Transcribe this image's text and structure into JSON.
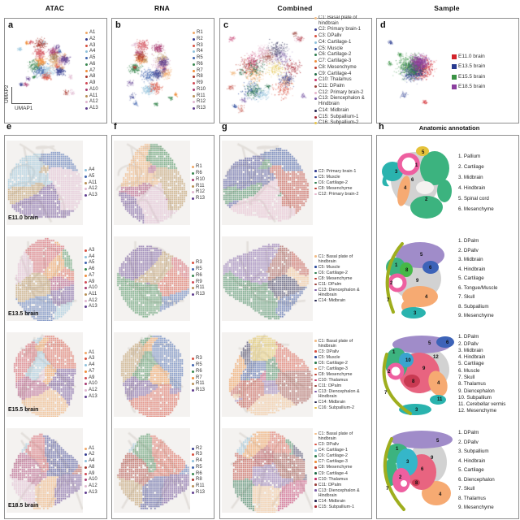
{
  "columns": [
    "ATAC",
    "RNA",
    "Combined",
    "Sample"
  ],
  "axis": {
    "x": "UMAP1",
    "y": "UMAP2"
  },
  "panels": {
    "a": {
      "letter": "a",
      "legend": [
        "A1",
        "A2",
        "A3",
        "A4",
        "A5",
        "A6",
        "A7",
        "A8",
        "A9",
        "A10",
        "A11",
        "A12",
        "A13"
      ]
    },
    "b": {
      "letter": "b",
      "legend": [
        "R1",
        "R2",
        "R3",
        "R4",
        "R5",
        "R6",
        "R7",
        "R8",
        "R9",
        "R10",
        "R11",
        "R12",
        "R13"
      ]
    },
    "c": {
      "letter": "c",
      "legend": [
        "C1: Basal plate of hindbrain",
        "C2: Primary brain-1",
        "C3: DPallv",
        "C4: Cartilage-1",
        "C5: Muscle",
        "C6: Cartilage-2",
        "C7: Cartilage-3",
        "C8: Mesenchyme",
        "C9: Cartilage-4",
        "C10: Thalamus",
        "C11: DPalm",
        "C12: Primary brain-2",
        "C13: Diencephalon & Hindbrain",
        "C14: Midbrain",
        "C15: Subpallium-1",
        "C16: Subpallium-2"
      ]
    },
    "d": {
      "letter": "d",
      "legend": [
        "E11.0 brain",
        "E13.5 brain",
        "E15.5 brain",
        "E18.5 brain"
      ]
    },
    "e": {
      "letter": "e",
      "rows": [
        {
          "stage": "E11.0 brain",
          "legend": [
            "A4",
            "A5",
            "A11",
            "A12",
            "A13"
          ]
        },
        {
          "stage": "E13.5 brain",
          "legend": [
            "A3",
            "A4",
            "A5",
            "A6",
            "A7",
            "A9",
            "A10",
            "A11",
            "A12",
            "A13"
          ]
        },
        {
          "stage": "E15.5 brain",
          "legend": [
            "A1",
            "A3",
            "A4",
            "A7",
            "A9",
            "A10",
            "A12",
            "A13"
          ]
        },
        {
          "stage": "E18.5 brain",
          "legend": [
            "A1",
            "A2",
            "A4",
            "A8",
            "A9",
            "A10",
            "A12",
            "A13"
          ]
        }
      ]
    },
    "f": {
      "letter": "f",
      "rows": [
        {
          "legend": [
            "R1",
            "R6",
            "R10",
            "R11",
            "R12",
            "R13"
          ]
        },
        {
          "legend": [
            "R3",
            "R5",
            "R6",
            "R9",
            "R11",
            "R13"
          ]
        },
        {
          "legend": [
            "R3",
            "R5",
            "R6",
            "R7",
            "R11",
            "R13"
          ]
        },
        {
          "legend": [
            "R2",
            "R3",
            "R4",
            "R5",
            "R6",
            "R8",
            "R11",
            "R13"
          ]
        }
      ]
    },
    "g": {
      "letter": "g",
      "rows": [
        {
          "legend": [
            "C2: Primary brain-1",
            "C5: Muscle",
            "C6: Cartilage-2",
            "C8: Mesenchyme",
            "C12: Primary brain-2"
          ]
        },
        {
          "legend": [
            "C1: Basal plate of hindbrain",
            "C5: Muscle",
            "C6: Cartilage-2",
            "C8: Mesenchyme",
            "C11: DPalm",
            "C13: Diencephalon & Hindbrain",
            "C14: Midbrain"
          ]
        },
        {
          "legend": [
            "C1: Basal plate of hindbrain",
            "C3: DPallv",
            "C5: Muscle",
            "C6: Cartilage-2",
            "C7: Cartilage-3",
            "C8: Mesenchyme",
            "C10: Thalamus",
            "C11: DPalm",
            "C13: Diencephalon & Hindbrain",
            "C14: Midbrain",
            "C16: Subpallium-2"
          ]
        },
        {
          "legend": [
            "C1: Basal plate of hindbrain",
            "C3: DPallv",
            "C4: Cartilage-1",
            "C6: Cartilage-2",
            "C7: Cartilage-3",
            "C8: Mesenchyme",
            "C9: Cartilage-4",
            "C10: Thalamus",
            "C11: DPalm",
            "C13: Diencephalon & Hindbrain",
            "C14: Midbrain",
            "C15: Subpallium-1"
          ]
        }
      ]
    },
    "h": {
      "letter": "h",
      "title": "Anatomic annotation",
      "rows": [
        {
          "items": [
            "Pallium",
            "Cartilage",
            "Midbrain",
            "Hindbrain",
            "Spinal cord",
            "Mesenchyme"
          ]
        },
        {
          "items": [
            "DPalm",
            "DPallv",
            "Midbrain",
            "Hindbrain",
            "Cartilage",
            "Tongue/Muscle",
            "Skull",
            "Subpallium",
            "Mesenchyme"
          ]
        },
        {
          "items": [
            "DPalm",
            "DPallv",
            "Midbrain",
            "Hindbrain",
            "Cartilage",
            "Muscle",
            "Skull",
            "Thalamus",
            "Diencephalon",
            "Subpallium",
            "Cerebellar vermis",
            "Mesenchyme"
          ]
        },
        {
          "items": [
            "DPalm",
            "DPallv",
            "Subpallium",
            "Hindbrain",
            "Cartilage",
            "Diencephalon",
            "Skull",
            "Thalamus",
            "Mesenchyme"
          ]
        }
      ]
    }
  },
  "palettes": {
    "cluster13": [
      "#f0a868",
      "#343b8f",
      "#d8503f",
      "#8fc0da",
      "#3f63ae",
      "#38874f",
      "#ef8d3b",
      "#a8352c",
      "#d04a55",
      "#a73a70",
      "#b78f55",
      "#dfb6cf",
      "#5f3d8f"
    ],
    "cluster16": [
      "#f2bd88",
      "#343b8f",
      "#d8503f",
      "#8fc0da",
      "#2f4d9e",
      "#2f7d4e",
      "#ef8d3b",
      "#bc3a2f",
      "#1f6b45",
      "#c23067",
      "#99403a",
      "#e5b6cc",
      "#7b5aa6",
      "#23234f",
      "#a6242f",
      "#e3c24a"
    ],
    "sample": [
      "#d2232a",
      "#283a8f",
      "#3a9144",
      "#8b3f9e"
    ]
  },
  "anatomy_colors": {
    "gray": "#d2d2d2",
    "pink": "#ee5fa0",
    "jade": "#3cb37f",
    "green": "#46b847",
    "teal": "#2ab3ae",
    "cyan": "#35b6c9",
    "orange": "#f6aa72",
    "yellow": "#e5c23b",
    "purple": "#a08cc9",
    "blue": "#3d63b8",
    "steel": "#3aa4cf",
    "rose": "#e86480",
    "red": "#c93a52",
    "olive": "#9fae1e"
  }
}
